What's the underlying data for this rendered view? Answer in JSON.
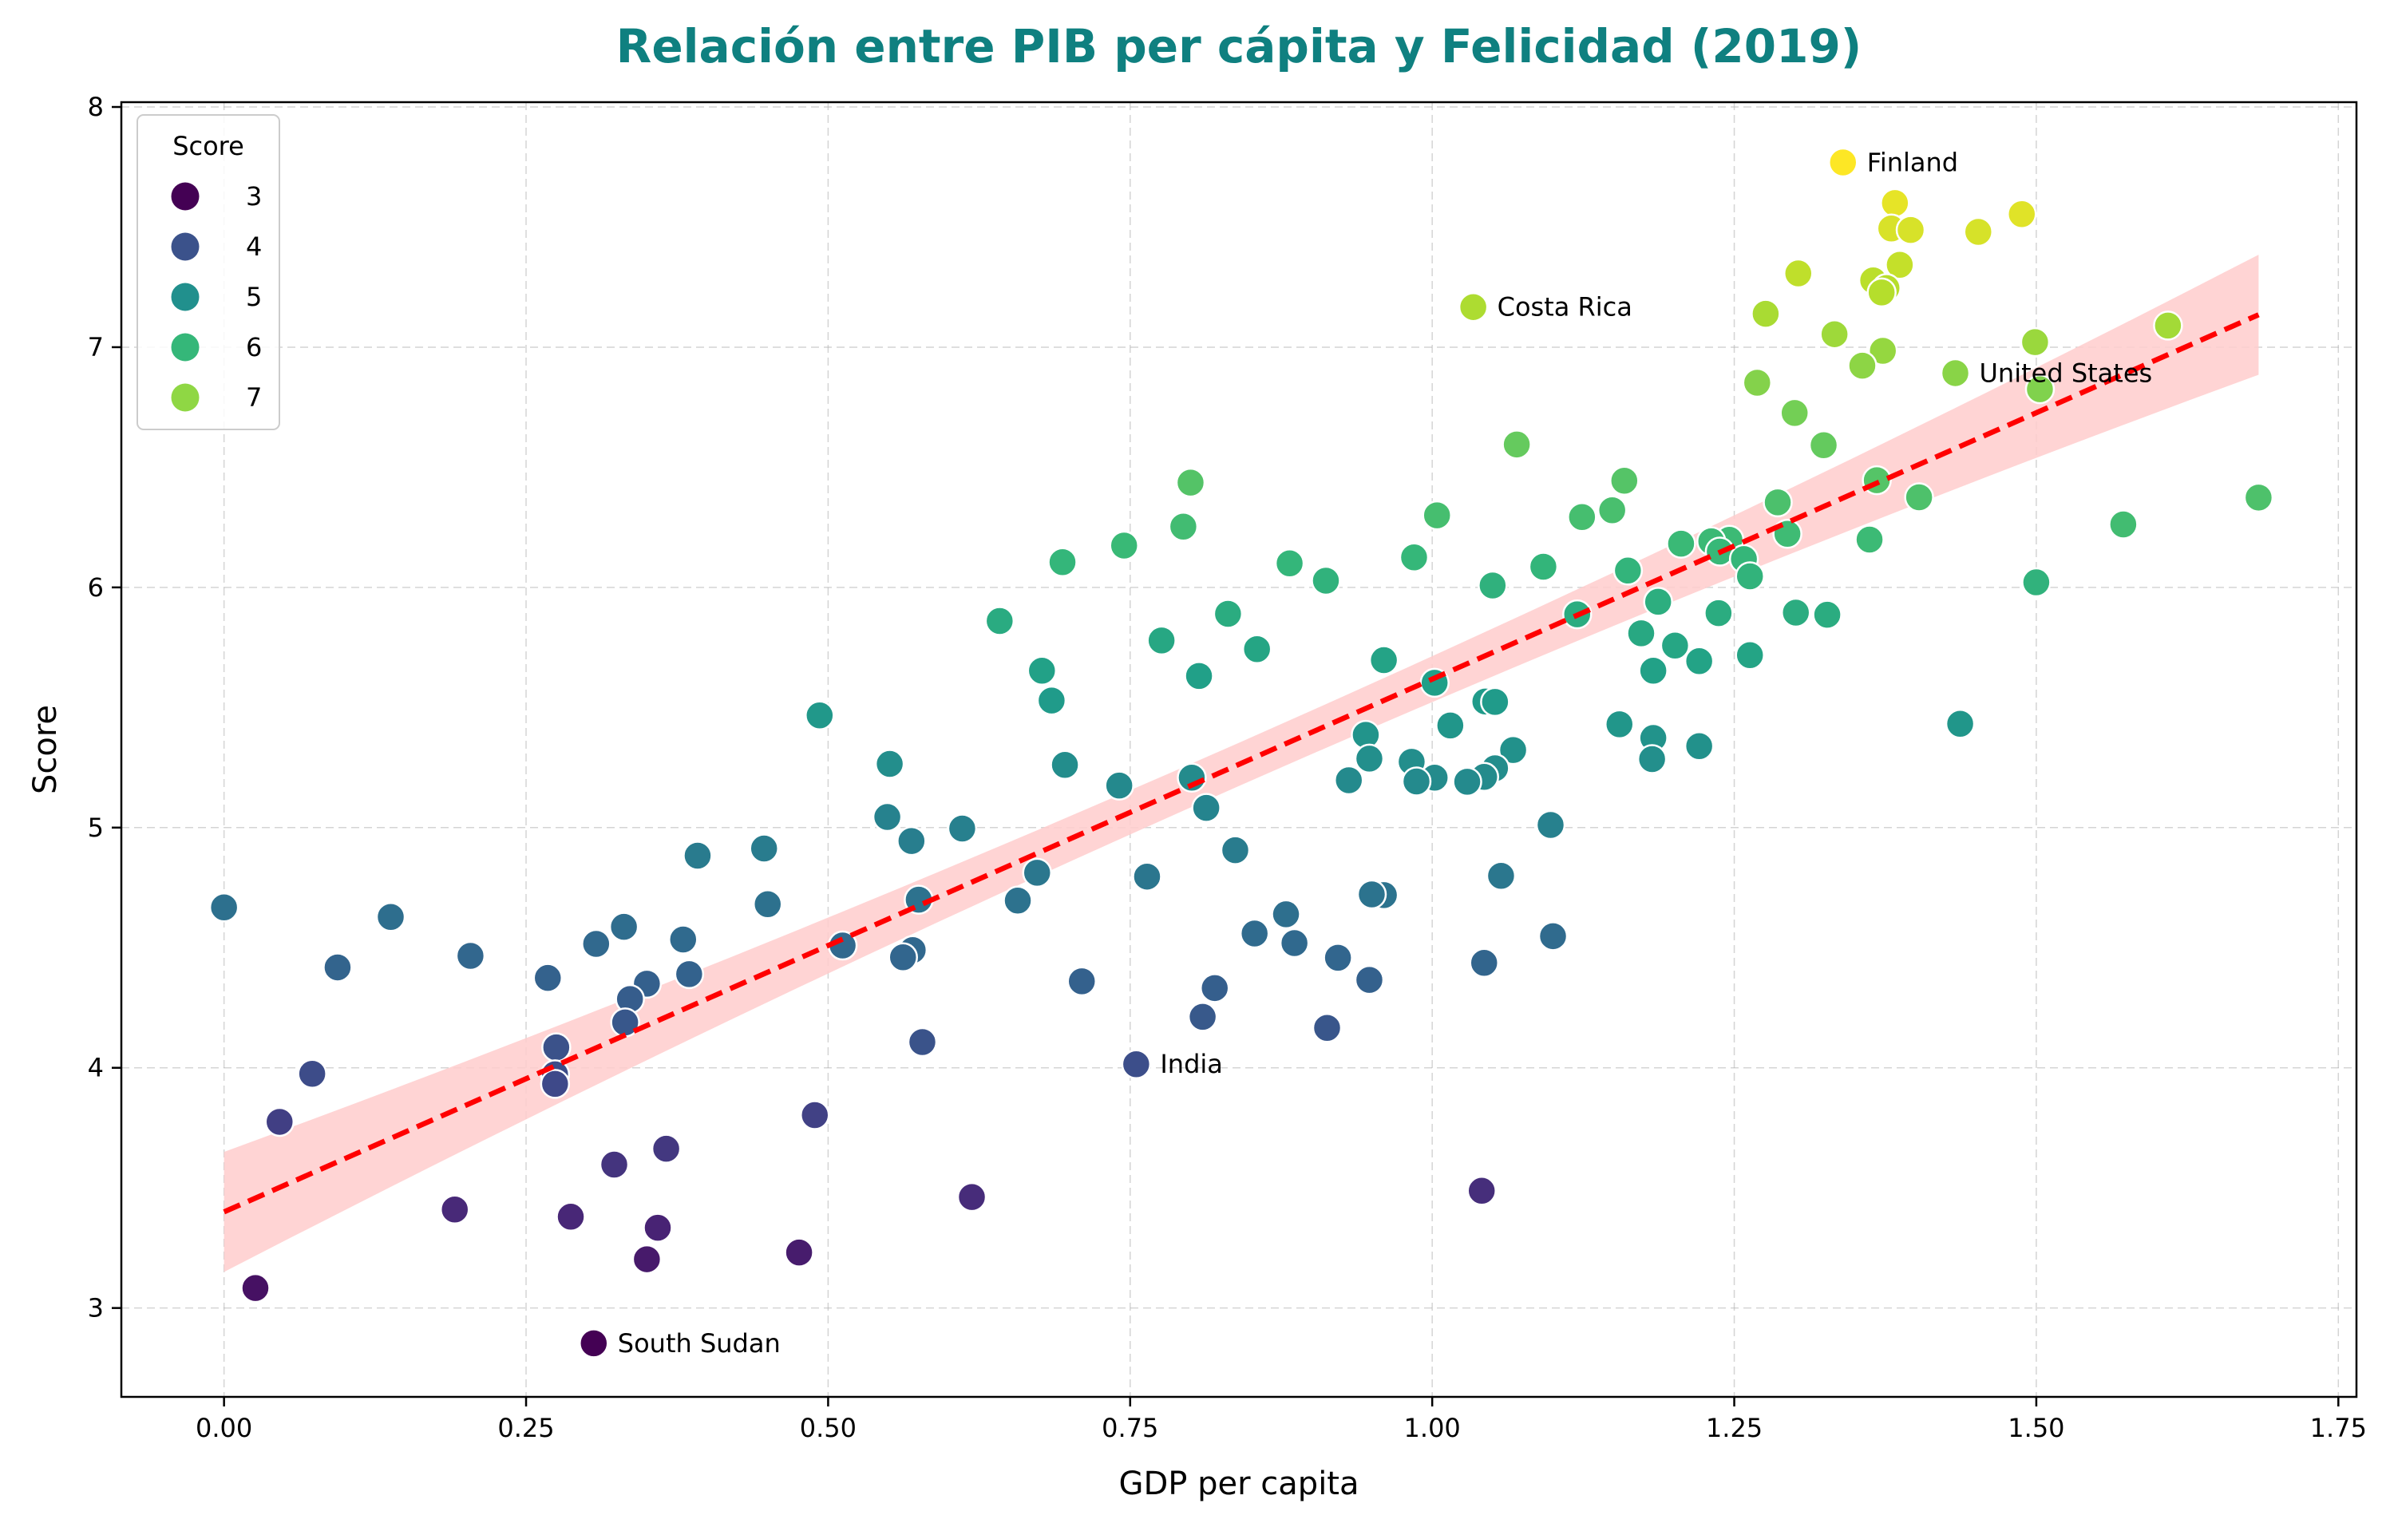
{
  "chart_data": {
    "type": "scatter",
    "title": "Relación entre PIB per cápita y Felicidad (2019)",
    "xlabel": "GDP per capita",
    "ylabel": "Score",
    "xlim": [
      -0.085,
      1.765
    ],
    "ylim": [
      2.63,
      8.02
    ],
    "xticks": [
      "0.00",
      "0.25",
      "0.50",
      "0.75",
      "1.00",
      "1.25",
      "1.50",
      "1.75"
    ],
    "xtick_values": [
      0,
      0.25,
      0.5,
      0.75,
      1.0,
      1.25,
      1.5,
      1.75
    ],
    "yticks": [
      "3",
      "4",
      "5",
      "6",
      "7",
      "8"
    ],
    "ytick_values": [
      3,
      4,
      5,
      6,
      7,
      8
    ],
    "grid": true,
    "hue": "Score",
    "colormap": "viridis",
    "legend": {
      "title": "Score",
      "placement": "top-left",
      "entries": [
        {
          "label": "3",
          "color": "#440154"
        },
        {
          "label": "4",
          "color": "#3b528b"
        },
        {
          "label": "5",
          "color": "#21908d"
        },
        {
          "label": "6",
          "color": "#35b779"
        },
        {
          "label": "7",
          "color": "#8fd744"
        }
      ]
    },
    "regression": {
      "intercept": 3.4,
      "slope": 2.218,
      "x_range": [
        0,
        1.684
      ],
      "line_color": "#ff0000",
      "band_color": "#ffcccc",
      "band_half_width_ends": 0.25,
      "band_half_width_mid": 0.09
    },
    "annotations": [
      {
        "text": "Finland",
        "x": 1.34,
        "y": 7.769
      },
      {
        "text": "Costa Rica",
        "x": 1.034,
        "y": 7.167
      },
      {
        "text": "United States",
        "x": 1.433,
        "y": 6.892
      },
      {
        "text": "India",
        "x": 0.755,
        "y": 4.015
      },
      {
        "text": "South Sudan",
        "x": 0.306,
        "y": 2.853
      }
    ],
    "points": [
      {
        "x": 1.34,
        "y": 7.769
      },
      {
        "x": 1.383,
        "y": 7.6
      },
      {
        "x": 1.488,
        "y": 7.554
      },
      {
        "x": 1.38,
        "y": 7.494
      },
      {
        "x": 1.396,
        "y": 7.488
      },
      {
        "x": 1.452,
        "y": 7.48
      },
      {
        "x": 1.387,
        "y": 7.343
      },
      {
        "x": 1.303,
        "y": 7.307
      },
      {
        "x": 1.365,
        "y": 7.278
      },
      {
        "x": 1.376,
        "y": 7.246
      },
      {
        "x": 1.372,
        "y": 7.228
      },
      {
        "x": 1.034,
        "y": 7.167
      },
      {
        "x": 1.276,
        "y": 7.139
      },
      {
        "x": 1.609,
        "y": 7.09
      },
      {
        "x": 1.333,
        "y": 7.054
      },
      {
        "x": 1.499,
        "y": 7.021
      },
      {
        "x": 1.373,
        "y": 6.985
      },
      {
        "x": 1.356,
        "y": 6.923
      },
      {
        "x": 1.433,
        "y": 6.892
      },
      {
        "x": 1.269,
        "y": 6.852
      },
      {
        "x": 1.503,
        "y": 6.825
      },
      {
        "x": 1.3,
        "y": 6.726
      },
      {
        "x": 1.07,
        "y": 6.595
      },
      {
        "x": 1.324,
        "y": 6.592
      },
      {
        "x": 1.368,
        "y": 6.446
      },
      {
        "x": 1.159,
        "y": 6.444
      },
      {
        "x": 0.8,
        "y": 6.436
      },
      {
        "x": 1.403,
        "y": 6.375
      },
      {
        "x": 1.684,
        "y": 6.374
      },
      {
        "x": 1.286,
        "y": 6.354
      },
      {
        "x": 1.149,
        "y": 6.321
      },
      {
        "x": 1.004,
        "y": 6.3
      },
      {
        "x": 1.124,
        "y": 6.293
      },
      {
        "x": 1.572,
        "y": 6.262
      },
      {
        "x": 0.794,
        "y": 6.253
      },
      {
        "x": 1.294,
        "y": 6.223
      },
      {
        "x": 1.362,
        "y": 6.199
      },
      {
        "x": 1.246,
        "y": 6.198
      },
      {
        "x": 1.231,
        "y": 6.192
      },
      {
        "x": 1.206,
        "y": 6.182
      },
      {
        "x": 0.745,
        "y": 6.174
      },
      {
        "x": 1.238,
        "y": 6.149
      },
      {
        "x": 0.985,
        "y": 6.125
      },
      {
        "x": 1.258,
        "y": 6.118
      },
      {
        "x": 0.694,
        "y": 6.105
      },
      {
        "x": 0.882,
        "y": 6.1
      },
      {
        "x": 1.092,
        "y": 6.086
      },
      {
        "x": 1.162,
        "y": 6.07
      },
      {
        "x": 1.263,
        "y": 6.046
      },
      {
        "x": 0.912,
        "y": 6.028
      },
      {
        "x": 1.5,
        "y": 6.021
      },
      {
        "x": 1.05,
        "y": 6.008
      },
      {
        "x": 1.187,
        "y": 5.94
      },
      {
        "x": 1.301,
        "y": 5.895
      },
      {
        "x": 1.237,
        "y": 5.893
      },
      {
        "x": 0.831,
        "y": 5.89
      },
      {
        "x": 1.12,
        "y": 5.888
      },
      {
        "x": 1.327,
        "y": 5.886
      },
      {
        "x": 0.642,
        "y": 5.86
      },
      {
        "x": 1.173,
        "y": 5.809
      },
      {
        "x": 0.776,
        "y": 5.779
      },
      {
        "x": 1.201,
        "y": 5.758
      },
      {
        "x": 0.855,
        "y": 5.743
      },
      {
        "x": 1.263,
        "y": 5.718
      },
      {
        "x": 0.96,
        "y": 5.697
      },
      {
        "x": 1.221,
        "y": 5.693
      },
      {
        "x": 1.183,
        "y": 5.653
      },
      {
        "x": 0.677,
        "y": 5.653
      },
      {
        "x": 0.807,
        "y": 5.631
      },
      {
        "x": 1.002,
        "y": 5.603
      },
      {
        "x": 0.685,
        "y": 5.529
      },
      {
        "x": 1.044,
        "y": 5.525
      },
      {
        "x": 1.052,
        "y": 5.523
      },
      {
        "x": 0.493,
        "y": 5.467
      },
      {
        "x": 1.437,
        "y": 5.432
      },
      {
        "x": 1.155,
        "y": 5.43
      },
      {
        "x": 1.015,
        "y": 5.425
      },
      {
        "x": 0.945,
        "y": 5.386
      },
      {
        "x": 1.183,
        "y": 5.373
      },
      {
        "x": 1.221,
        "y": 5.339
      },
      {
        "x": 1.067,
        "y": 5.323
      },
      {
        "x": 0.948,
        "y": 5.287
      },
      {
        "x": 1.182,
        "y": 5.285
      },
      {
        "x": 0.983,
        "y": 5.274
      },
      {
        "x": 0.551,
        "y": 5.265
      },
      {
        "x": 0.696,
        "y": 5.261
      },
      {
        "x": 1.052,
        "y": 5.247
      },
      {
        "x": 1.043,
        "y": 5.211
      },
      {
        "x": 0.801,
        "y": 5.208
      },
      {
        "x": 1.002,
        "y": 5.208
      },
      {
        "x": 0.931,
        "y": 5.197
      },
      {
        "x": 1.029,
        "y": 5.191
      },
      {
        "x": 0.987,
        "y": 5.192
      },
      {
        "x": 0.741,
        "y": 5.175
      },
      {
        "x": 0.813,
        "y": 5.082
      },
      {
        "x": 0.549,
        "y": 5.044
      },
      {
        "x": 1.098,
        "y": 5.011
      },
      {
        "x": 0.611,
        "y": 4.996
      },
      {
        "x": 0.569,
        "y": 4.944
      },
      {
        "x": 0.447,
        "y": 4.913
      },
      {
        "x": 0.837,
        "y": 4.906
      },
      {
        "x": 0.392,
        "y": 4.883
      },
      {
        "x": 0.673,
        "y": 4.812
      },
      {
        "x": 1.057,
        "y": 4.799
      },
      {
        "x": 0.764,
        "y": 4.796
      },
      {
        "x": 0.575,
        "y": 4.7
      },
      {
        "x": 0.657,
        "y": 4.696
      },
      {
        "x": 0.96,
        "y": 4.719
      },
      {
        "x": 0.95,
        "y": 4.722
      },
      {
        "x": 0.45,
        "y": 4.681
      },
      {
        "x": 0.0,
        "y": 4.668
      },
      {
        "x": 0.879,
        "y": 4.639
      },
      {
        "x": 0.138,
        "y": 4.628
      },
      {
        "x": 0.331,
        "y": 4.587
      },
      {
        "x": 0.853,
        "y": 4.559
      },
      {
        "x": 1.1,
        "y": 4.548
      },
      {
        "x": 0.38,
        "y": 4.534
      },
      {
        "x": 0.308,
        "y": 4.516
      },
      {
        "x": 0.512,
        "y": 4.509
      },
      {
        "x": 0.886,
        "y": 4.519
      },
      {
        "x": 0.57,
        "y": 4.49
      },
      {
        "x": 0.204,
        "y": 4.466
      },
      {
        "x": 0.562,
        "y": 4.46
      },
      {
        "x": 0.922,
        "y": 4.458
      },
      {
        "x": 1.043,
        "y": 4.437
      },
      {
        "x": 0.094,
        "y": 4.418
      },
      {
        "x": 0.385,
        "y": 4.39
      },
      {
        "x": 0.268,
        "y": 4.374
      },
      {
        "x": 0.948,
        "y": 4.366
      },
      {
        "x": 0.71,
        "y": 4.36
      },
      {
        "x": 0.35,
        "y": 4.35
      },
      {
        "x": 0.82,
        "y": 4.332
      },
      {
        "x": 0.336,
        "y": 4.286
      },
      {
        "x": 0.81,
        "y": 4.212
      },
      {
        "x": 0.332,
        "y": 4.189
      },
      {
        "x": 0.913,
        "y": 4.166
      },
      {
        "x": 0.578,
        "y": 4.107
      },
      {
        "x": 0.275,
        "y": 4.085
      },
      {
        "x": 0.755,
        "y": 4.015
      },
      {
        "x": 0.073,
        "y": 3.975
      },
      {
        "x": 0.274,
        "y": 3.973
      },
      {
        "x": 0.274,
        "y": 3.933
      },
      {
        "x": 0.489,
        "y": 3.803
      },
      {
        "x": 0.046,
        "y": 3.775
      },
      {
        "x": 0.366,
        "y": 3.663
      },
      {
        "x": 0.323,
        "y": 3.597
      },
      {
        "x": 1.041,
        "y": 3.488
      },
      {
        "x": 0.619,
        "y": 3.462
      },
      {
        "x": 0.191,
        "y": 3.41
      },
      {
        "x": 0.287,
        "y": 3.38
      },
      {
        "x": 0.359,
        "y": 3.334
      },
      {
        "x": 0.476,
        "y": 3.231
      },
      {
        "x": 0.35,
        "y": 3.203
      },
      {
        "x": 0.026,
        "y": 3.083
      },
      {
        "x": 0.306,
        "y": 2.853
      }
    ]
  }
}
